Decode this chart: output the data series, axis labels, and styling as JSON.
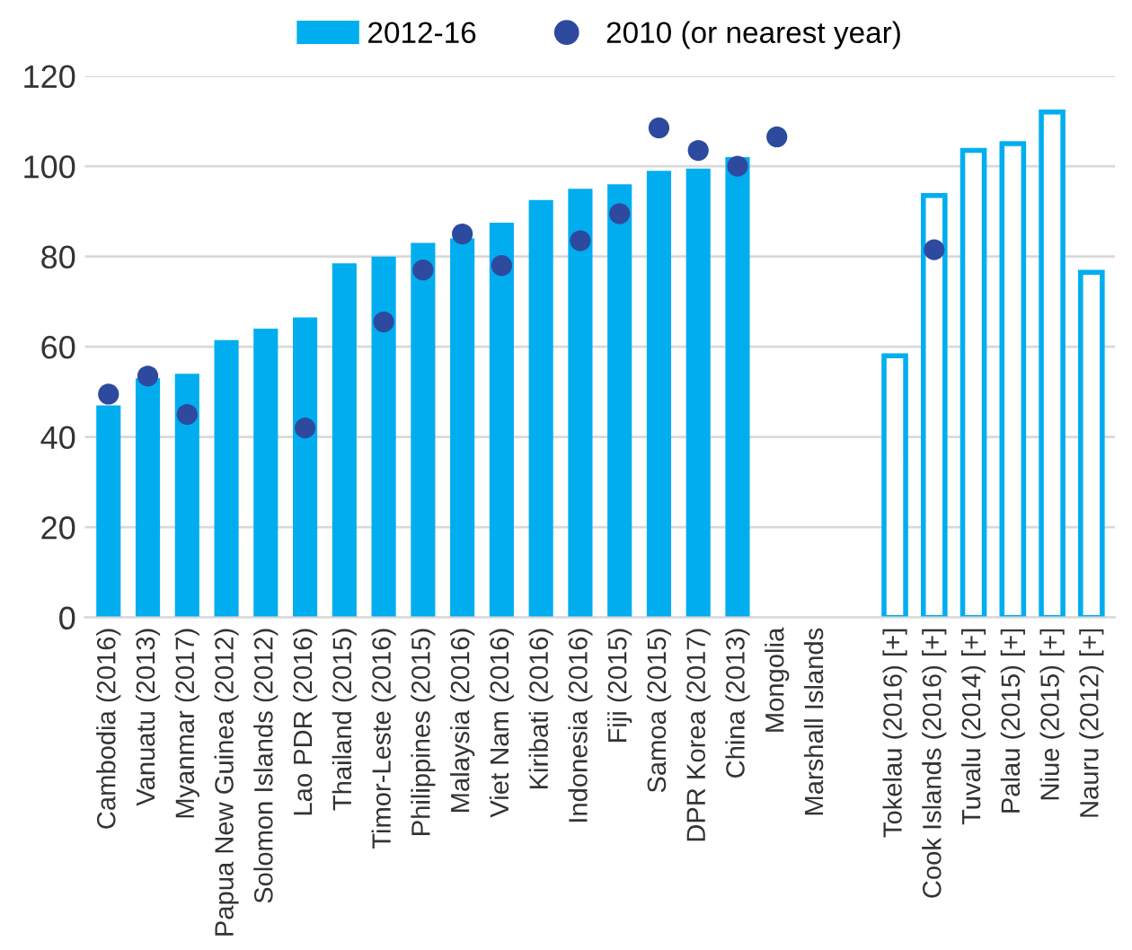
{
  "chart_data": {
    "type": "bar",
    "categories": [
      "Cambodia (2016)",
      "Vanuatu (2013)",
      "Myanmar (2017)",
      "Papua New Guinea (2012)",
      "Solomon Islands (2012)",
      "Lao PDR (2016)",
      "Thailand (2015)",
      "Timor-Leste (2016)",
      "Philippines (2015)",
      "Malaysia (2016)",
      "Viet Nam (2016)",
      "Kiribati (2016)",
      "Indonesia (2016)",
      "Fiji (2015)",
      "Samoa (2015)",
      "DPR Korea (2017)",
      "China (2013)",
      "Mongolia",
      "Marshall Islands",
      null,
      "Tokelau (2016) [+]",
      "Cook Islands (2016) [+]",
      "Tuvalu (2014) [+]",
      "Palau (2015) [+]",
      "Niue (2015) [+]",
      "Nauru (2012) [+]"
    ],
    "series": [
      {
        "name": "2012-16",
        "color": "#00aeef",
        "values": [
          47,
          53,
          54,
          61.5,
          64,
          66.5,
          78.5,
          80,
          83,
          84,
          87.5,
          92.5,
          95,
          96,
          99,
          99.5,
          102,
          null,
          null,
          null,
          null,
          null,
          null,
          null,
          null,
          null
        ]
      },
      {
        "color": "#00aeef",
        "values": [
          null,
          null,
          null,
          null,
          null,
          null,
          null,
          null,
          null,
          null,
          null,
          null,
          null,
          null,
          null,
          null,
          null,
          null,
          null,
          null,
          58,
          93.5,
          103.5,
          105,
          112,
          76.5
        ]
      },
      {
        "name": "2010 (or nearest year)",
        "type": "scatter",
        "color": "#2e4a9e",
        "values": [
          49.5,
          53.5,
          45,
          null,
          null,
          42,
          null,
          65.5,
          77,
          85,
          78,
          null,
          83.5,
          89.5,
          108.5,
          103.5,
          100,
          106.5,
          null,
          null,
          null,
          81.5,
          null,
          null,
          null,
          null
        ]
      }
    ],
    "ylim": [
      0,
      120
    ],
    "yticks": [
      0,
      20,
      40,
      60,
      80,
      100,
      120
    ],
    "grid": "y",
    "legend": "top",
    "marker": "circle"
  }
}
